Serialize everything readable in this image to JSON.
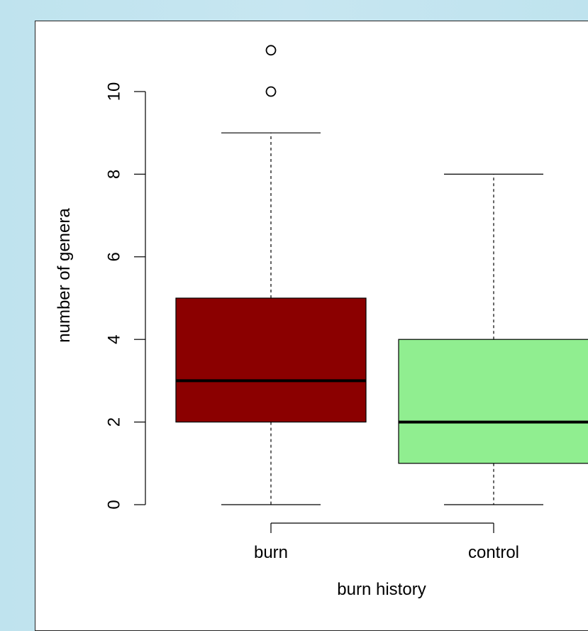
{
  "chart_data": {
    "type": "boxplot",
    "title": "",
    "xlabel": "burn history",
    "ylabel": "number of genera",
    "ylim": [
      0,
      11
    ],
    "yticks": [
      0,
      2,
      4,
      6,
      8,
      10
    ],
    "grid": false,
    "categories": [
      "burn",
      "control"
    ],
    "boxes": [
      {
        "category": "burn",
        "whisker_low": 0,
        "q1": 2,
        "median": 3,
        "q3": 5,
        "whisker_high": 9,
        "outliers": [
          10,
          11
        ],
        "fill": "#8b0000"
      },
      {
        "category": "control",
        "whisker_low": 0,
        "q1": 1,
        "median": 2,
        "q3": 4,
        "whisker_high": 8,
        "outliers": [],
        "fill": "#90ee90"
      }
    ]
  },
  "colors": {
    "background": "#c2e4ef",
    "panel": "#ffffff",
    "burn": "#8b0000",
    "control": "#90ee90"
  }
}
